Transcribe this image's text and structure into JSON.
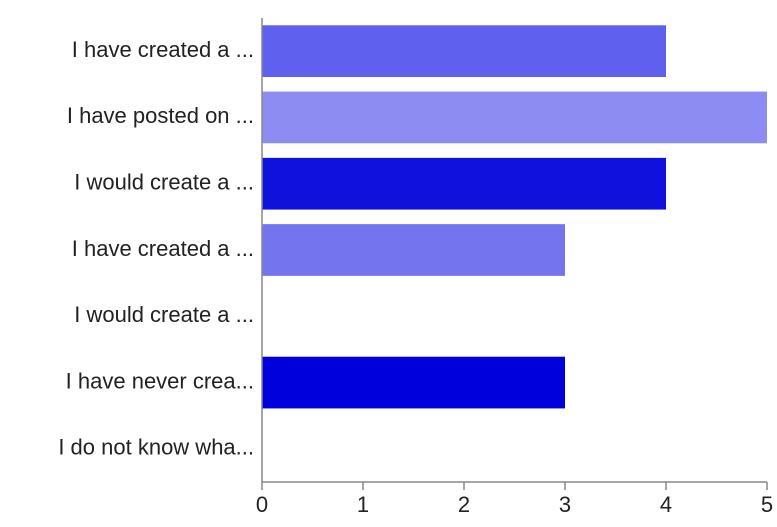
{
  "chart_data": {
    "type": "bar",
    "orientation": "horizontal",
    "categories": [
      "I have created a ...",
      "I have posted on ...",
      "I would create a ...",
      "I have created a ...",
      "I would create a ...",
      "I have never crea...",
      "I do not know wha..."
    ],
    "values": [
      4,
      5,
      4,
      3,
      0,
      3,
      0
    ],
    "bar_colors": [
      "#6060ee",
      "#8c8cf2",
      "#1111dd",
      "#7474ee",
      "#5a5aee",
      "#0000dd",
      "#4a4ae0"
    ],
    "xlim": [
      0,
      5
    ],
    "x_ticks": [
      "0",
      "1",
      "2",
      "3",
      "4",
      "5"
    ],
    "grid": false,
    "legend": "none",
    "title": "",
    "xlabel": "",
    "ylabel": ""
  }
}
